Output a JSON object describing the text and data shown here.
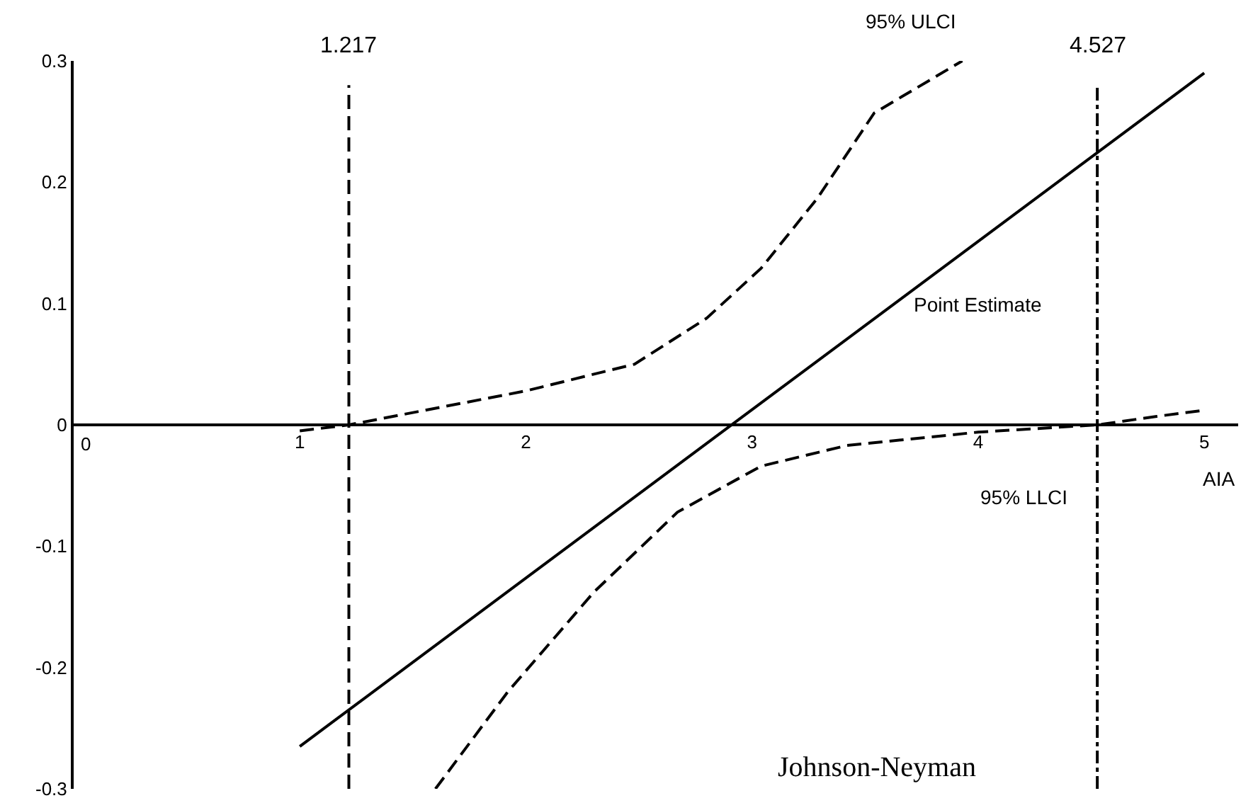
{
  "chart_data": {
    "type": "line",
    "xlabel": "AIA",
    "series": [
      {
        "x": [
          1,
          5
        ],
        "values": [
          -0.265,
          0.29
        ],
        "color": "#000000",
        "line_style": "solid"
      },
      {
        "x": [
          1,
          1.217,
          2,
          2.48,
          2.8,
          3.04,
          3.29,
          3.54,
          3.93
        ],
        "values": [
          -0.005,
          0,
          0.028,
          0.05,
          0.088,
          0.129,
          0.187,
          0.257,
          0.3
        ],
        "color": "#000000",
        "line_style": "dashed"
      },
      {
        "x": [
          1.6,
          1.92,
          2.3,
          2.67,
          3.04,
          3.42,
          4,
          4.527,
          4.79,
          5
        ],
        "values": [
          -0.3,
          -0.22,
          -0.138,
          -0.072,
          -0.034,
          -0.017,
          -0.006,
          0,
          0.007,
          0.012
        ],
        "color": "#000000",
        "line_style": "dashed"
      }
    ],
    "xlim": [
      0,
      5.15
    ],
    "xticks": [
      0,
      1,
      2,
      3,
      4,
      5
    ],
    "ylim": [
      -0.3,
      0.3
    ],
    "yticks": [
      -0.3,
      -0.2,
      -0.1,
      0,
      0.1,
      0.2,
      0.3
    ],
    "marker": "none",
    "ref_lines": [
      {
        "axis": "x",
        "value": 1.217,
        "label": "1.217",
        "line_style": "dashed",
        "color": "#000000"
      },
      {
        "axis": "x",
        "value": 4.527,
        "label": "4.527",
        "line_style": "dashdot",
        "color": "#000000"
      }
    ],
    "annotations": [
      "95% ULCI",
      "Point Estimate",
      "95% LLCI",
      "Johnson-Neyman"
    ]
  }
}
